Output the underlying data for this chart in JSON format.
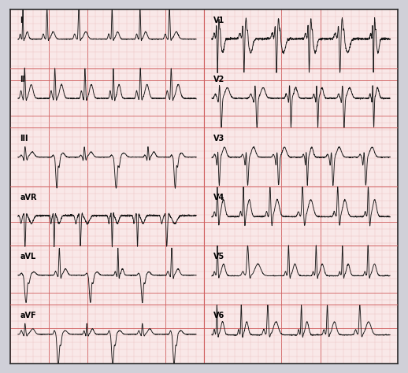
{
  "background_color": "#f9e8e8",
  "grid_minor_color": "#e8b8b8",
  "grid_major_color": "#d06060",
  "ecg_color": "#1a1a1a",
  "border_color": "#2a2a2a",
  "outer_bg": "#d0d0d8",
  "lead_label_fontsize": 7,
  "layout": {
    "left_cols": [
      "I",
      "II",
      "III",
      "aVR",
      "aVL",
      "aVF"
    ],
    "right_cols": [
      "V1",
      "V2",
      "V3",
      "V4",
      "V5",
      "V6"
    ]
  }
}
